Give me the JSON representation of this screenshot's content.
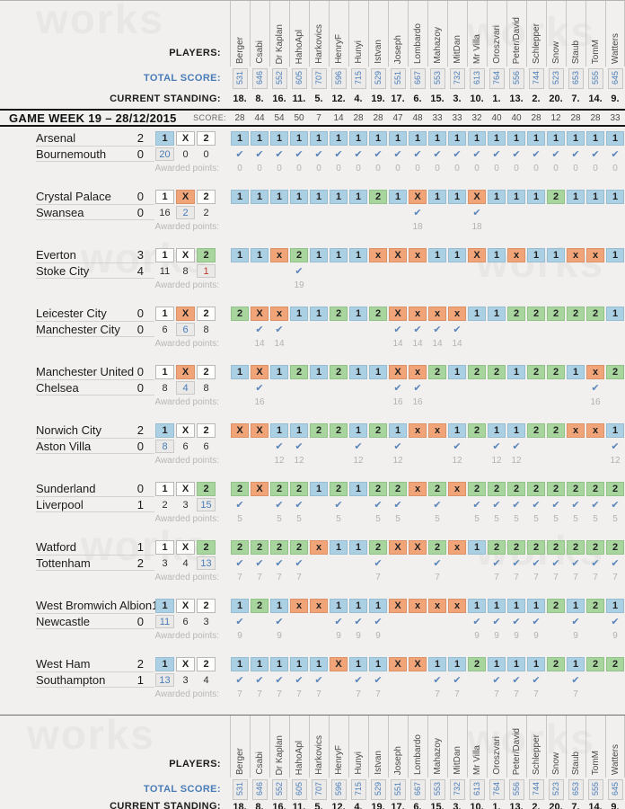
{
  "labels": {
    "players": "PLAYERS:",
    "total_score": "TOTAL SCORE:",
    "current_standing": "CURRENT STANDING:",
    "score": "SCORE:",
    "awarded_points": "Awarded points:",
    "game_week_title": "GAME WEEK 19 – 28/12/2015",
    "outcomes": [
      "1",
      "X",
      "2"
    ],
    "checkmark_icon": "✔"
  },
  "watermark_text": "works",
  "colors": {
    "home_win_cell": "#abd0e4",
    "draw_cell": "#f0a478",
    "away_win_cell": "#a8d59e",
    "accent_blue": "#4a7cb8",
    "alert_red": "#c0392b",
    "check_blue": "#5b86bb",
    "background": "#f1f0ee"
  },
  "players": [
    {
      "name": "Berger",
      "total": "531",
      "standing": "18.",
      "week_score": "28"
    },
    {
      "name": "Csabi",
      "total": "646",
      "standing": "8.",
      "week_score": "44"
    },
    {
      "name": "Dr Kaplan",
      "total": "552",
      "standing": "16.",
      "week_score": "54"
    },
    {
      "name": "HahoApl",
      "total": "605",
      "standing": "11.",
      "week_score": "50"
    },
    {
      "name": "Harkovics",
      "total": "707",
      "standing": "5.",
      "week_score": "7"
    },
    {
      "name": "HenryF",
      "total": "596",
      "standing": "12.",
      "week_score": "14"
    },
    {
      "name": "Hunyi",
      "total": "715",
      "standing": "4.",
      "week_score": "28"
    },
    {
      "name": "Istvan",
      "total": "529",
      "standing": "19.",
      "week_score": "28"
    },
    {
      "name": "Joseph",
      "total": "551",
      "standing": "17.",
      "week_score": "47"
    },
    {
      "name": "Lombardo",
      "total": "667",
      "standing": "6.",
      "week_score": "48"
    },
    {
      "name": "Mahazoy",
      "total": "553",
      "standing": "15.",
      "week_score": "33"
    },
    {
      "name": "MitDan",
      "total": "732",
      "standing": "3.",
      "week_score": "33"
    },
    {
      "name": "Mr Villa",
      "total": "613",
      "standing": "10.",
      "week_score": "32"
    },
    {
      "name": "Oroszvari",
      "total": "764",
      "standing": "1.",
      "week_score": "40"
    },
    {
      "name": "Peter/David",
      "total": "556",
      "standing": "13.",
      "week_score": "40"
    },
    {
      "name": "Schlepper",
      "total": "744",
      "standing": "2.",
      "week_score": "28"
    },
    {
      "name": "Snow",
      "total": "523",
      "standing": "20.",
      "week_score": "12"
    },
    {
      "name": "Staub",
      "total": "653",
      "standing": "7.",
      "week_score": "28"
    },
    {
      "name": "TomM",
      "total": "555",
      "standing": "14.",
      "week_score": "28"
    },
    {
      "name": "Watters",
      "total": "645",
      "standing": "9.",
      "week_score": "33"
    }
  ],
  "matches": [
    {
      "home": "Arsenal",
      "home_score": "2",
      "away": "Bournemouth",
      "away_score": "0",
      "result": "1",
      "counts": [
        "20",
        "0",
        "0"
      ],
      "count_style": "blue",
      "points": "0",
      "predictions": [
        "1",
        "1",
        "1",
        "1",
        "1",
        "1",
        "1",
        "1",
        "1",
        "1",
        "1",
        "1",
        "1",
        "1",
        "1",
        "1",
        "1",
        "1",
        "1",
        "1"
      ]
    },
    {
      "home": "Crystal Palace",
      "home_score": "0",
      "away": "Swansea",
      "away_score": "0",
      "result": "X",
      "counts": [
        "16",
        "2",
        "2"
      ],
      "count_style": "blue",
      "points": "18",
      "predictions": [
        "1",
        "1",
        "1",
        "1",
        "1",
        "1",
        "1",
        "2",
        "1",
        "X",
        "1",
        "1",
        "X",
        "1",
        "1",
        "1",
        "2",
        "1",
        "1",
        "1"
      ]
    },
    {
      "home": "Everton",
      "home_score": "3",
      "away": "Stoke City",
      "away_score": "4",
      "result": "2",
      "counts": [
        "11",
        "8",
        "1"
      ],
      "count_style": "red",
      "points": "19",
      "predictions": [
        "1",
        "1",
        "x",
        "2",
        "1",
        "1",
        "1",
        "x",
        "X",
        "x",
        "1",
        "1",
        "X",
        "1",
        "x",
        "1",
        "1",
        "x",
        "x",
        "1"
      ]
    },
    {
      "home": "Leicester City",
      "home_score": "0",
      "away": "Manchester City",
      "away_score": "0",
      "result": "X",
      "counts": [
        "6",
        "6",
        "8"
      ],
      "count_style": "blue",
      "points": "14",
      "predictions": [
        "2",
        "X",
        "x",
        "1",
        "1",
        "2",
        "1",
        "2",
        "X",
        "x",
        "x",
        "x",
        "1",
        "1",
        "2",
        "2",
        "2",
        "2",
        "2",
        "1"
      ]
    },
    {
      "home": "Manchester United",
      "home_score": "0",
      "away": "Chelsea",
      "away_score": "0",
      "result": "X",
      "counts": [
        "8",
        "4",
        "8"
      ],
      "count_style": "blue",
      "points": "16",
      "predictions": [
        "1",
        "X",
        "1",
        "2",
        "1",
        "2",
        "1",
        "1",
        "X",
        "x",
        "2",
        "1",
        "2",
        "2",
        "1",
        "2",
        "2",
        "1",
        "x",
        "2"
      ]
    },
    {
      "home": "Norwich City",
      "home_score": "2",
      "away": "Aston Villa",
      "away_score": "0",
      "result": "1",
      "counts": [
        "8",
        "6",
        "6"
      ],
      "count_style": "blue",
      "points": "12",
      "predictions": [
        "X",
        "X",
        "1",
        "1",
        "2",
        "2",
        "1",
        "2",
        "1",
        "x",
        "x",
        "1",
        "2",
        "1",
        "1",
        "2",
        "2",
        "x",
        "x",
        "1"
      ]
    },
    {
      "home": "Sunderland",
      "home_score": "0",
      "away": "Liverpool",
      "away_score": "1",
      "result": "2",
      "counts": [
        "2",
        "3",
        "15"
      ],
      "count_style": "blue",
      "points": "5",
      "predictions": [
        "2",
        "X",
        "2",
        "2",
        "1",
        "2",
        "1",
        "2",
        "2",
        "x",
        "2",
        "x",
        "2",
        "2",
        "2",
        "2",
        "2",
        "2",
        "2",
        "2"
      ]
    },
    {
      "home": "Watford",
      "home_score": "1",
      "away": "Tottenham",
      "away_score": "2",
      "result": "2",
      "counts": [
        "3",
        "4",
        "13"
      ],
      "count_style": "blue",
      "points": "7",
      "predictions": [
        "2",
        "2",
        "2",
        "2",
        "x",
        "1",
        "1",
        "2",
        "X",
        "X",
        "2",
        "x",
        "1",
        "2",
        "2",
        "2",
        "2",
        "2",
        "2",
        "2"
      ]
    },
    {
      "home": "West Bromwich Albion",
      "home_score": "1",
      "away": "Newcastle",
      "away_score": "0",
      "result": "1",
      "counts": [
        "11",
        "6",
        "3"
      ],
      "count_style": "blue",
      "points": "9",
      "predictions": [
        "1",
        "2",
        "1",
        "x",
        "x",
        "1",
        "1",
        "1",
        "X",
        "x",
        "x",
        "x",
        "1",
        "1",
        "1",
        "1",
        "2",
        "1",
        "2",
        "1"
      ]
    },
    {
      "home": "West Ham",
      "home_score": "2",
      "away": "Southampton",
      "away_score": "1",
      "result": "1",
      "counts": [
        "13",
        "3",
        "4"
      ],
      "count_style": "blue",
      "points": "7",
      "predictions": [
        "1",
        "1",
        "1",
        "1",
        "1",
        "X",
        "1",
        "1",
        "X",
        "X",
        "1",
        "1",
        "2",
        "1",
        "1",
        "1",
        "2",
        "1",
        "2",
        "2"
      ]
    }
  ]
}
